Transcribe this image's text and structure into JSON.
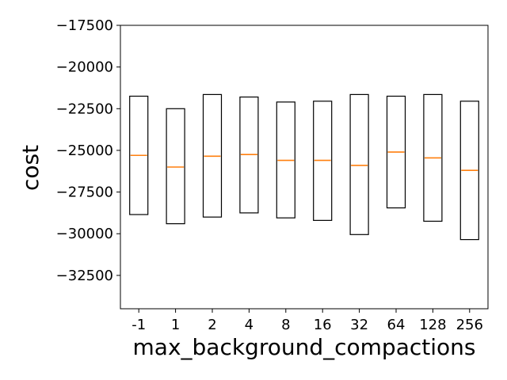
{
  "chart_data": {
    "type": "box",
    "title": "",
    "xlabel": "max_background_compactions",
    "ylabel": "cost",
    "categories": [
      "-1",
      "1",
      "2",
      "4",
      "8",
      "16",
      "32",
      "64",
      "128",
      "256"
    ],
    "ylim": [
      -34500,
      -17500
    ],
    "yticks": [
      -17500,
      -20000,
      -22500,
      -25000,
      -27500,
      -30000,
      -32500
    ],
    "ytick_labels": [
      "−17500",
      "−20000",
      "−22500",
      "−25000",
      "−27500",
      "−30000",
      "−32500"
    ],
    "grid": false,
    "boxes": [
      {
        "category": "-1",
        "q1": -28850,
        "median": -25300,
        "q3": -21750
      },
      {
        "category": "1",
        "q1": -29400,
        "median": -26000,
        "q3": -22500
      },
      {
        "category": "2",
        "q1": -29000,
        "median": -25350,
        "q3": -21650
      },
      {
        "category": "4",
        "q1": -28750,
        "median": -25250,
        "q3": -21800
      },
      {
        "category": "8",
        "q1": -29050,
        "median": -25600,
        "q3": -22100
      },
      {
        "category": "16",
        "q1": -29200,
        "median": -25600,
        "q3": -22050
      },
      {
        "category": "32",
        "q1": -30050,
        "median": -25900,
        "q3": -21650
      },
      {
        "category": "64",
        "q1": -28450,
        "median": -25100,
        "q3": -21750
      },
      {
        "category": "128",
        "q1": -29250,
        "median": -25450,
        "q3": -21650
      },
      {
        "category": "256",
        "q1": -30350,
        "median": -26200,
        "q3": -22050
      }
    ],
    "colors": {
      "box": "#000000",
      "median": "#ff7f0e",
      "axes": "#000000"
    }
  }
}
